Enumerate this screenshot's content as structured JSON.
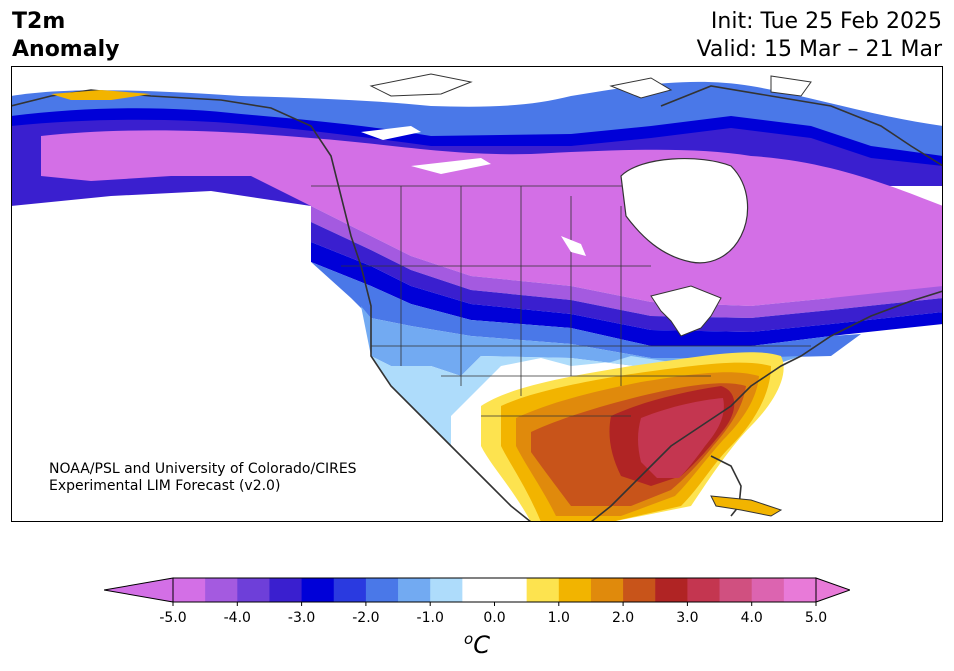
{
  "header": {
    "title_line1": "T2m",
    "title_line2": "Anomaly",
    "init": "Init: Tue 25 Feb 2025",
    "valid": "Valid: 15 Mar – 21 Mar"
  },
  "credit": {
    "line1": "NOAA/PSL and University of Colorado/CIRES",
    "line2": "Experimental LIM Forecast (v2.0)"
  },
  "colorbar": {
    "unit_sup": "o",
    "unit": "C",
    "ticks": [
      "-5.0",
      "-4.0",
      "-3.0",
      "-2.0",
      "-1.0",
      "0.0",
      "1.0",
      "2.0",
      "3.0",
      "4.0",
      "5.0"
    ],
    "colors": [
      "#d36fe6",
      "#a45ae0",
      "#6e3fd9",
      "#3a1fcf",
      "#0000d8",
      "#2a3ae0",
      "#4a78e8",
      "#72aaf2",
      "#aedcfb",
      "#ffffff",
      "#ffffff",
      "#fde34f",
      "#f2b400",
      "#e08a0c",
      "#c8541a",
      "#b02424",
      "#c43650",
      "#d05080",
      "#dc64b0",
      "#e87ad8"
    ],
    "under_color": "#d36fe6",
    "over_color": "#e87ad8"
  }
}
